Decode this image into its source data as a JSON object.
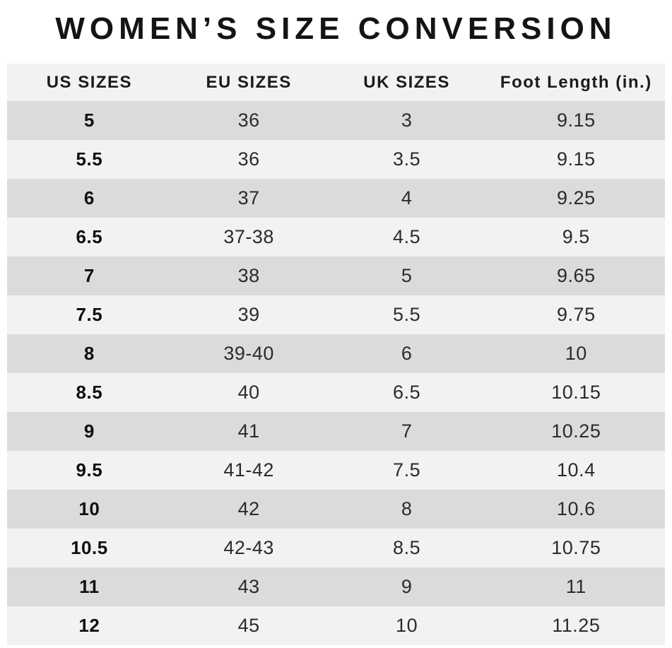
{
  "chart_data": {
    "type": "table",
    "title": "WOMEN’S SIZE CONVERSION",
    "columns": [
      "US SIZES",
      "EU SIZES",
      "UK SIZES",
      "Foot Length (in.)"
    ],
    "rows": [
      [
        "5",
        "36",
        "3",
        "9.15"
      ],
      [
        "5.5",
        "36",
        "3.5",
        "9.15"
      ],
      [
        "6",
        "37",
        "4",
        "9.25"
      ],
      [
        "6.5",
        "37-38",
        "4.5",
        "9.5"
      ],
      [
        "7",
        "38",
        "5",
        "9.65"
      ],
      [
        "7.5",
        "39",
        "5.5",
        "9.75"
      ],
      [
        "8",
        "39-40",
        "6",
        "10"
      ],
      [
        "8.5",
        "40",
        "6.5",
        "10.15"
      ],
      [
        "9",
        "41",
        "7",
        "10.25"
      ],
      [
        "9.5",
        "41-42",
        "7.5",
        "10.4"
      ],
      [
        "10",
        "42",
        "8",
        "10.6"
      ],
      [
        "10.5",
        "42-43",
        "8.5",
        "10.75"
      ],
      [
        "11",
        "43",
        "9",
        "11"
      ],
      [
        "12",
        "45",
        "10",
        "11.25"
      ]
    ],
    "layout": {
      "legend": "none",
      "grid": "off",
      "row_striping": "alternating"
    }
  },
  "colors": {
    "row_dark": "#dbdbdb",
    "row_light": "#f2f2f2",
    "header_bg": "#f2f2f2",
    "title_text": "#141414",
    "cell_text": "#2b2b2b",
    "bold_cell_text": "#101010",
    "page_bg": "#ffffff"
  }
}
